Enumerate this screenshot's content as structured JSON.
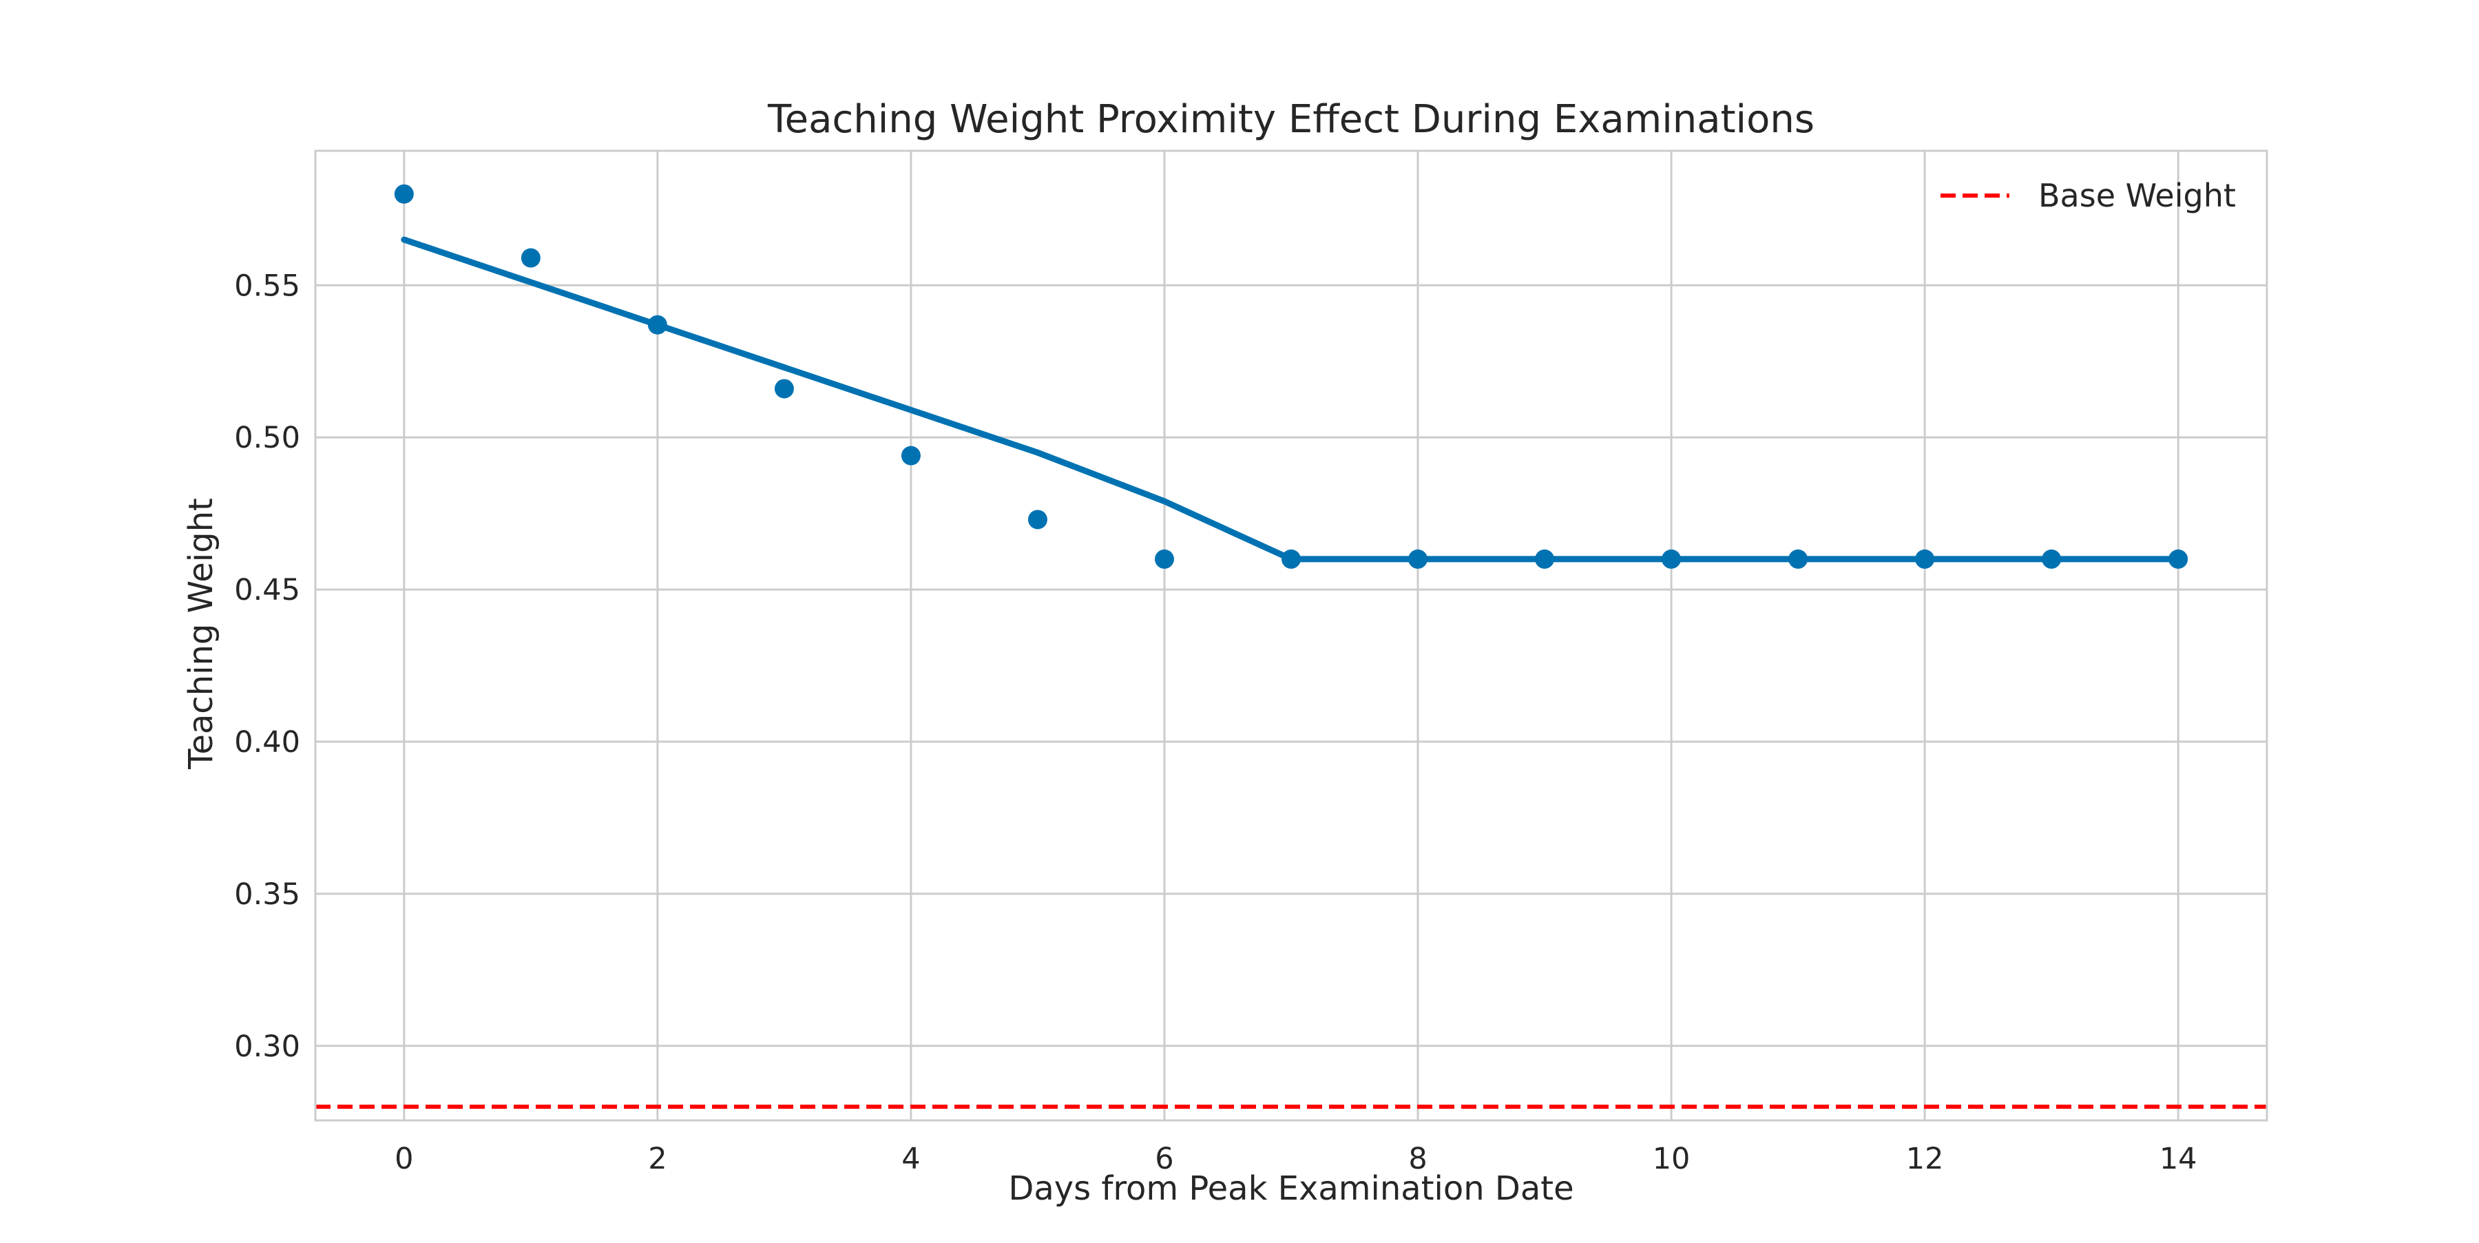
{
  "chart_data": {
    "type": "line",
    "title": "Teaching Weight Proximity Effect During Examinations",
    "xlabel": "Days from Peak Examination Date",
    "ylabel": "Teaching Weight",
    "xlim": [
      -0.7,
      14.7
    ],
    "ylim": [
      0.2755,
      0.5942
    ],
    "xticks": [
      0,
      2,
      4,
      6,
      8,
      10,
      12,
      14
    ],
    "yticks": [
      0.3,
      0.35,
      0.4,
      0.45,
      0.5,
      0.55
    ],
    "grid": true,
    "legend_position": "top-right",
    "series": [
      {
        "kind": "scatter",
        "color": "#0072B2",
        "x": [
          0,
          1,
          2,
          3,
          4,
          5,
          6,
          7,
          8,
          9,
          10,
          11,
          12,
          13,
          14
        ],
        "y": [
          0.58,
          0.559,
          0.537,
          0.516,
          0.494,
          0.473,
          0.46,
          0.46,
          0.46,
          0.46,
          0.46,
          0.46,
          0.46,
          0.46,
          0.46
        ]
      },
      {
        "kind": "line",
        "color": "#0072B2",
        "x": [
          0,
          1,
          2,
          3,
          4,
          5,
          6,
          7,
          8,
          9,
          10,
          11,
          12,
          13,
          14
        ],
        "y": [
          0.565,
          0.551,
          0.537,
          0.523,
          0.509,
          0.495,
          0.479,
          0.46,
          0.46,
          0.46,
          0.46,
          0.46,
          0.46,
          0.46,
          0.46
        ]
      },
      {
        "kind": "hline",
        "name": "Base Weight",
        "color": "#ff0000",
        "linestyle": "dashed",
        "y": 0.28
      }
    ]
  }
}
